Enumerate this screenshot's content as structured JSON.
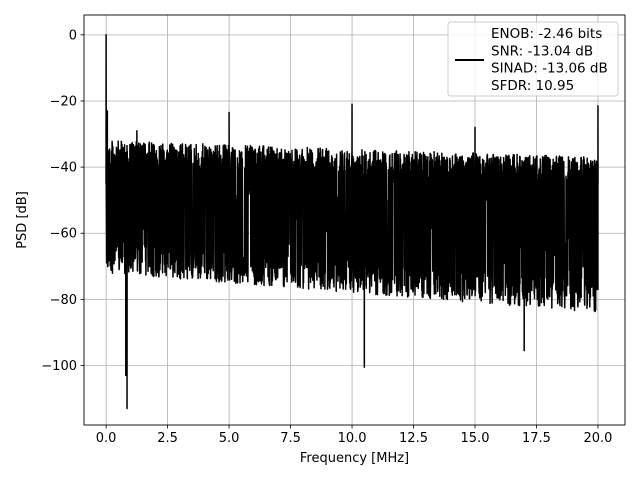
{
  "chart_data": {
    "type": "line",
    "xlabel": "Frequency [MHz]",
    "ylabel": "PSD [dB]",
    "xlim": [
      -0.9,
      21.1
    ],
    "ylim": [
      -118,
      6
    ],
    "xticks": [
      0.0,
      2.5,
      5.0,
      7.5,
      10.0,
      12.5,
      15.0,
      17.5,
      20.0
    ],
    "xtick_labels": [
      "0.0",
      "2.5",
      "5.0",
      "7.5",
      "10.0",
      "12.5",
      "15.0",
      "17.5",
      "20.0"
    ],
    "yticks": [
      0,
      -20,
      -40,
      -60,
      -80,
      -100
    ],
    "ytick_labels": [
      "0",
      "−20",
      "−40",
      "−60",
      "−80",
      "−100"
    ],
    "grid": true,
    "legend_position": "top-right",
    "series": [
      {
        "color": "#000000",
        "noise_floor_top_db": [
          -32,
          -37
        ],
        "noise_floor_bottom_db": [
          -72,
          -84
        ],
        "spurs": [
          {
            "x": 0.0,
            "y": 0
          },
          {
            "x": 0.05,
            "y": -23
          },
          {
            "x": 1.25,
            "y": -29
          },
          {
            "x": 5.0,
            "y": -23.5
          },
          {
            "x": 10.0,
            "y": -21
          },
          {
            "x": 15.0,
            "y": -28
          },
          {
            "x": 20.0,
            "y": -21.5
          }
        ],
        "dips": [
          {
            "x": 0.8,
            "y": -103
          },
          {
            "x": 0.85,
            "y": -113
          },
          {
            "x": 10.5,
            "y": -100.5
          },
          {
            "x": 17.0,
            "y": -95.5
          }
        ]
      }
    ],
    "legend": {
      "lines": [
        "ENOB: -2.46 bits",
        "SNR: -13.04 dB",
        "SINAD: -13.06 dB",
        "SFDR: 10.95"
      ]
    }
  }
}
